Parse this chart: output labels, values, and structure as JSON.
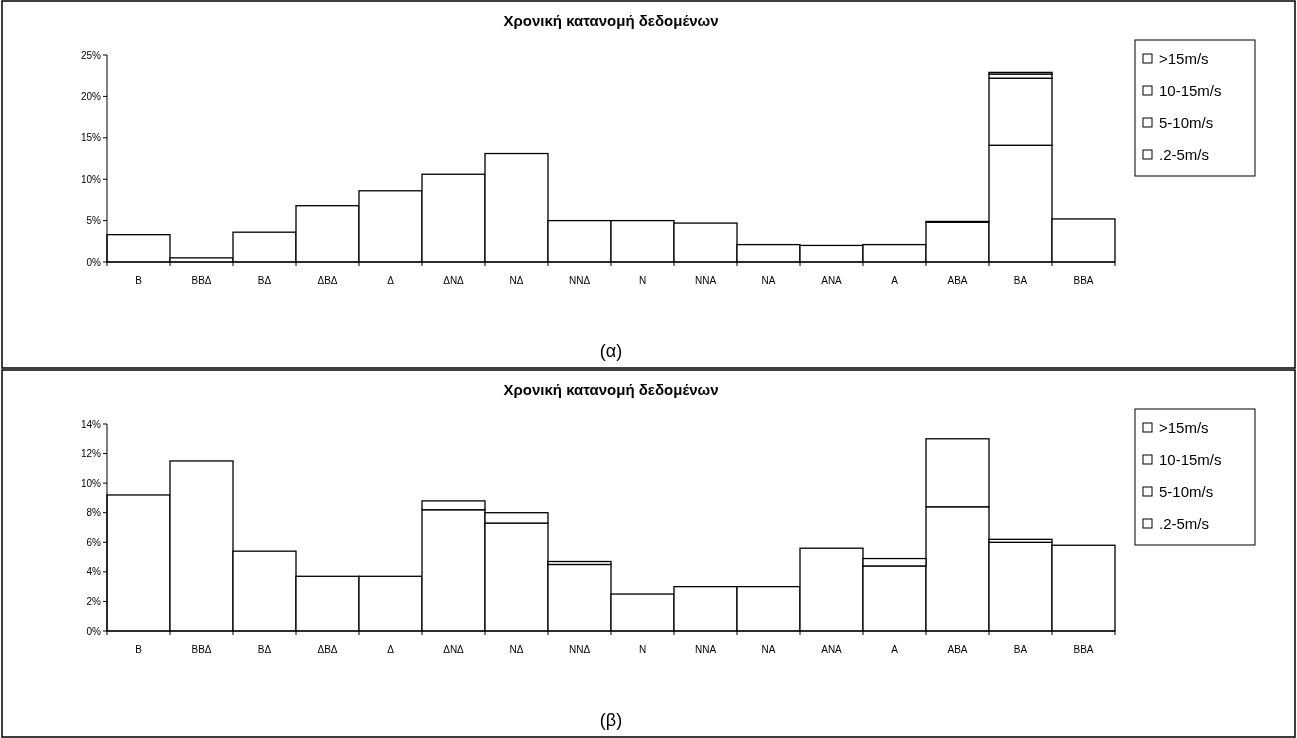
{
  "chart_data": [
    {
      "type": "bar",
      "title": "Χρονική κατανομή δεδομένων",
      "categories": [
        "B",
        "BBΔ",
        "BΔ",
        "ΔBΔ",
        "Δ",
        "ΔNΔ",
        "NΔ",
        "NNΔ",
        "N",
        "NNA",
        "NA",
        "ANA",
        "A",
        "ABA",
        "BA",
        "BBA"
      ],
      "stacked": true,
      "legend": "right",
      "ylim": [
        0,
        25
      ],
      "yticks": [
        {
          "value": 0,
          "label": "0%"
        },
        {
          "value": 5,
          "label": "5%"
        },
        {
          "value": 10,
          "label": "10%"
        },
        {
          "value": 15,
          "label": "15%"
        },
        {
          "value": 20,
          "label": "20%"
        },
        {
          "value": 25,
          "label": "25%"
        }
      ],
      "annotations": [
        "(α)"
      ],
      "series": [
        {
          "name": ".2-5m/s",
          "color": "#ffffff",
          "values": [
            3.3,
            0.5,
            3.6,
            6.8,
            8.6,
            10.6,
            13.1,
            5.0,
            5.0,
            4.7,
            2.1,
            2.0,
            2.1,
            4.8,
            14.1,
            5.2
          ]
        },
        {
          "name": "5-10m/s",
          "color": "#ffffff",
          "values": [
            0,
            0,
            0,
            0,
            0,
            0,
            0,
            0,
            0,
            0,
            0,
            0,
            0,
            0.1,
            8.1,
            0
          ]
        },
        {
          "name": "10-15m/s",
          "color": "#ffffff",
          "values": [
            0,
            0,
            0,
            0,
            0,
            0,
            0,
            0,
            0,
            0,
            0,
            0,
            0,
            0,
            0.5,
            0
          ]
        },
        {
          "name": ">15m/s",
          "color": "#ffffff",
          "values": [
            0,
            0,
            0,
            0,
            0,
            0,
            0,
            0,
            0,
            0,
            0,
            0,
            0,
            0,
            0.2,
            0
          ]
        }
      ]
    },
    {
      "type": "bar",
      "title": "Χρονική κατανομή δεδομένων",
      "categories": [
        "B",
        "BBΔ",
        "BΔ",
        "ΔBΔ",
        "Δ",
        "ΔNΔ",
        "NΔ",
        "NNΔ",
        "N",
        "NNA",
        "NA",
        "ANA",
        "A",
        "ABA",
        "BA",
        "BBA"
      ],
      "stacked": true,
      "legend": "right",
      "ylim": [
        0,
        14
      ],
      "yticks": [
        {
          "value": 0,
          "label": "0%"
        },
        {
          "value": 2,
          "label": "2%"
        },
        {
          "value": 4,
          "label": "4%"
        },
        {
          "value": 6,
          "label": "6%"
        },
        {
          "value": 8,
          "label": "8%"
        },
        {
          "value": 10,
          "label": "10%"
        },
        {
          "value": 12,
          "label": "12%"
        },
        {
          "value": 14,
          "label": "14%"
        }
      ],
      "annotations": [
        "(β)"
      ],
      "series": [
        {
          "name": ".2-5m/s",
          "color": "#ffffff",
          "values": [
            9.2,
            11.5,
            5.4,
            3.7,
            3.7,
            8.2,
            7.3,
            4.5,
            2.5,
            3.0,
            3.0,
            5.6,
            4.4,
            8.4,
            6.0,
            5.8
          ]
        },
        {
          "name": "5-10m/s",
          "color": "#ffffff",
          "values": [
            0,
            0,
            0,
            0,
            0,
            0.6,
            0.7,
            0.2,
            0,
            0,
            0,
            0,
            0.5,
            4.6,
            0.2,
            0
          ]
        },
        {
          "name": "10-15m/s",
          "color": "#ffffff",
          "values": [
            0,
            0,
            0,
            0,
            0,
            0,
            0,
            0,
            0,
            0,
            0,
            0,
            0,
            0,
            0,
            0
          ]
        },
        {
          "name": ">15m/s",
          "color": "#ffffff",
          "values": [
            0,
            0,
            0,
            0,
            0,
            0,
            0,
            0,
            0,
            0,
            0,
            0,
            0,
            0,
            0,
            0
          ]
        }
      ]
    }
  ]
}
